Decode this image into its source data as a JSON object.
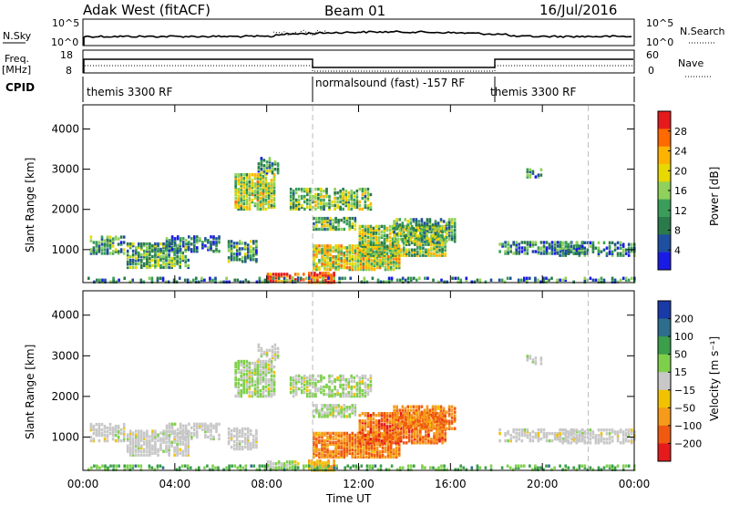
{
  "header": {
    "station": "Adak West (fitACF)",
    "beam": "Beam 01",
    "date": "16/Jul/2016"
  },
  "top_panels": {
    "nsky_label": "N.Sky",
    "nsky_ticks": [
      "10^5",
      "10^0"
    ],
    "nsearch_label": "N.Search",
    "nsearch_ticks": [
      "10^5",
      "10^0"
    ],
    "freq_label_1": "Freq.",
    "freq_label_2": "[MHz]",
    "freq_ticks": [
      "18",
      "8"
    ],
    "nave_label": "Nave",
    "nave_ticks": [
      "60",
      "0"
    ],
    "cpid_label": "CPID",
    "cpid_segments": [
      {
        "label": "themis 3300 RF",
        "start": 0,
        "end": 10
      },
      {
        "label": "normalsound (fast) -157 RF",
        "start": 10,
        "end": 18
      },
      {
        "label": "themis 3300 RF",
        "start": 18,
        "end": 24
      }
    ]
  },
  "chart_data": [
    {
      "type": "heatmap",
      "ylabel": "Slant Range [km]",
      "y_ticks": [
        "4000",
        "3000",
        "2000",
        "1000"
      ],
      "y_tick_values": [
        4000,
        3000,
        2000,
        1000
      ],
      "ylim": [
        180,
        4600
      ],
      "xlim": [
        0,
        24
      ],
      "colorbar_label": "Power [dB]",
      "colorbar_ticks": [
        "28",
        "24",
        "20",
        "16",
        "12",
        "8",
        "4"
      ],
      "colorbar_colors": [
        "#e41a1c",
        "#ff6a00",
        "#ffb300",
        "#e6d800",
        "#8fd15a",
        "#3a9e5a",
        "#2a7a4a",
        "#1f4fa0",
        "#1a1ae6"
      ],
      "colorbar_range": [
        0,
        32
      ]
    },
    {
      "type": "heatmap",
      "ylabel": "Slant Range [km]",
      "y_ticks": [
        "4000",
        "3000",
        "2000",
        "1000"
      ],
      "y_tick_values": [
        4000,
        3000,
        2000,
        1000
      ],
      "ylim": [
        180,
        4600
      ],
      "xlim": [
        0,
        24
      ],
      "colorbar_label": "Velocity [m s⁻¹]",
      "colorbar_ticks": [
        "200",
        "100",
        "50",
        "15",
        "−15",
        "−50",
        "−100",
        "−200"
      ],
      "colorbar_colors": [
        "#1a3aa8",
        "#2d6e8c",
        "#3a9e4a",
        "#7ed04b",
        "#c8c8c8",
        "#f2c200",
        "#f59a1a",
        "#f05a10",
        "#e41a1c"
      ],
      "colorbar_range": [
        -250,
        250
      ]
    }
  ],
  "x_axis": {
    "ticks": [
      "00:00",
      "04:00",
      "08:00",
      "12:00",
      "16:00",
      "20:00",
      "00:00"
    ],
    "tick_values": [
      0,
      4,
      8,
      12,
      16,
      20,
      24
    ],
    "label": "Time UT"
  },
  "annotations": {
    "dashed_times": [
      10,
      22
    ]
  }
}
